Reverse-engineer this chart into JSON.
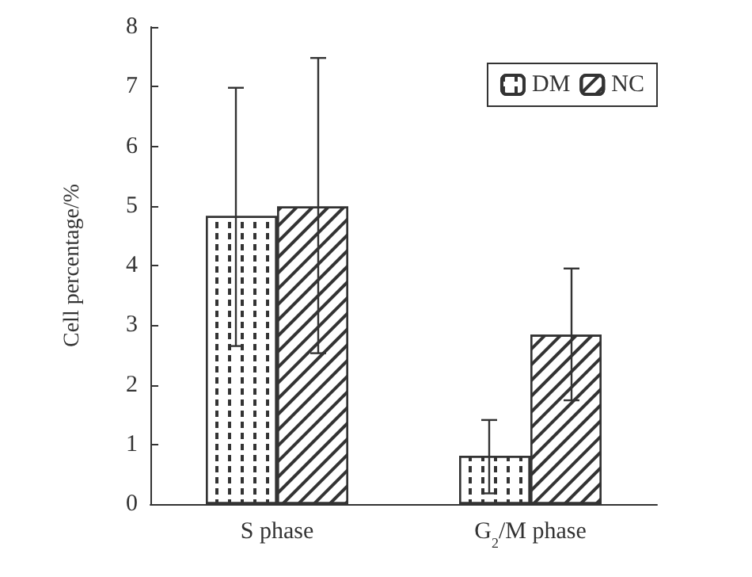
{
  "chart_data": {
    "type": "bar",
    "ylabel": "Cell percentage/%",
    "categories": [
      "S phase",
      "G$_{2}$/M phase"
    ],
    "series": [
      {
        "name": "DM",
        "color": "#ffffff",
        "values": [
          4.83,
          0.81
        ],
        "errors": [
          [
            2.65,
            6.98
          ],
          [
            0.18,
            1.41
          ]
        ]
      },
      {
        "name": "NC",
        "color": "#ffffff",
        "values": [
          4.99,
          2.84
        ],
        "errors": [
          [
            2.53,
            7.48
          ],
          [
            1.74,
            3.95
          ]
        ]
      }
    ],
    "ylim": [
      0,
      8
    ],
    "yticks": [
      0,
      1,
      2,
      3,
      4,
      5,
      6,
      7,
      8
    ],
    "grid": false,
    "legend": "top right"
  }
}
